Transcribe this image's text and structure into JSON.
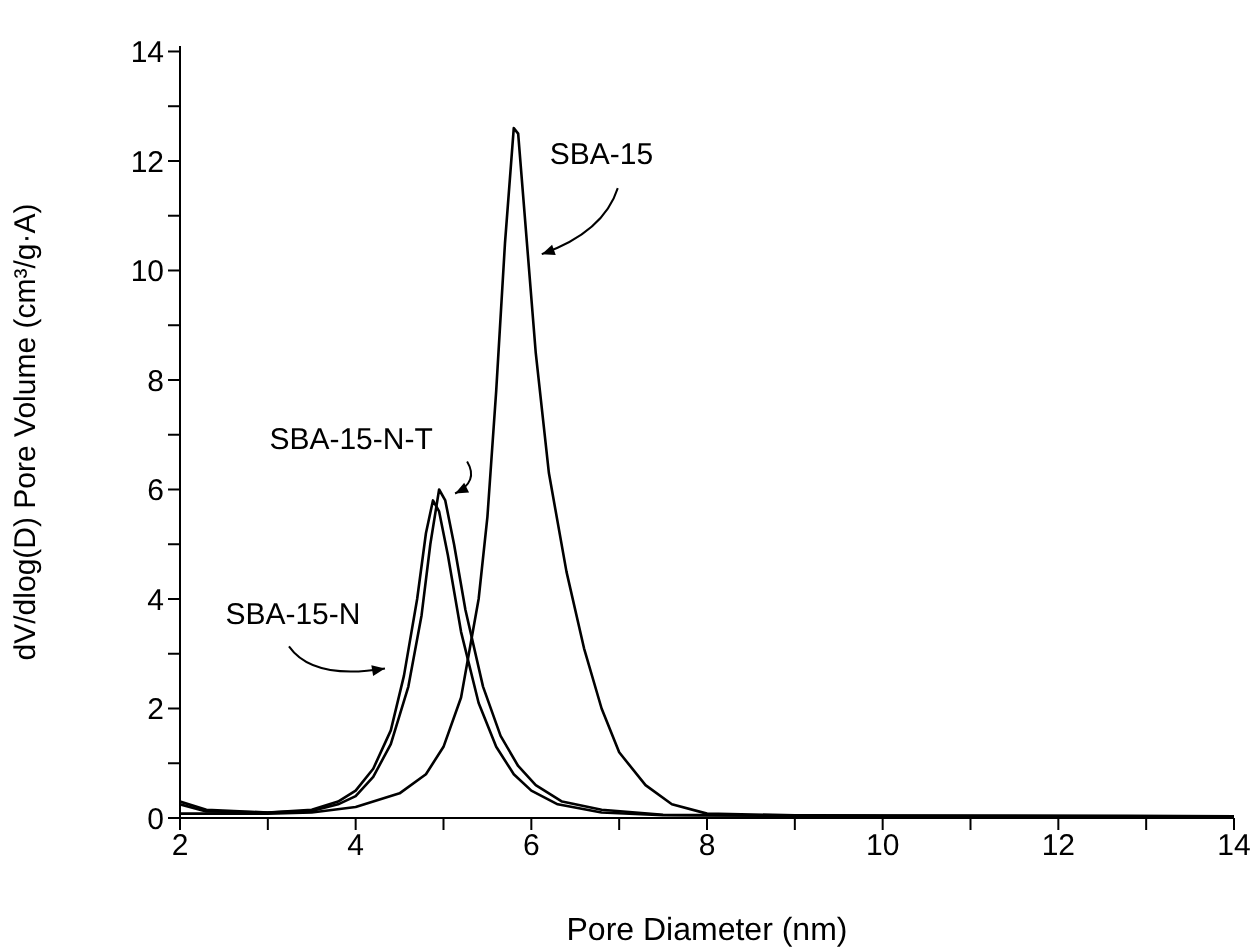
{
  "chart_data": {
    "type": "line",
    "xlabel": "Pore Diameter (nm)",
    "ylabel": "dV/dlog(D) Pore Volume (cm³/g·A)",
    "xlim": [
      2,
      14
    ],
    "ylim": [
      0,
      14.1
    ],
    "xticks": [
      2,
      {
        "value": 3,
        "label": null
      },
      4,
      {
        "value": 5,
        "label": null
      },
      6,
      {
        "value": 7,
        "label": null
      },
      8,
      {
        "value": 9,
        "label": null
      },
      10,
      {
        "value": 11,
        "label": null
      },
      12,
      {
        "value": 13,
        "label": null
      },
      14
    ],
    "yticks": [
      0,
      {
        "value": 1,
        "label": null
      },
      2,
      {
        "value": 3,
        "label": null
      },
      4,
      {
        "value": 5,
        "label": null
      },
      6,
      {
        "value": 7,
        "label": null
      },
      8,
      {
        "value": 9,
        "label": null
      },
      10,
      {
        "value": 11,
        "label": null
      },
      12,
      {
        "value": 13,
        "label": null
      },
      14
    ],
    "grid": false,
    "legend": false,
    "marker": "none",
    "line_style": "solid",
    "series": [
      {
        "name": "SBA-15",
        "color": "#000000",
        "x": [
          2.0,
          3.0,
          3.5,
          4.0,
          4.5,
          4.8,
          5.0,
          5.2,
          5.4,
          5.5,
          5.6,
          5.7,
          5.8,
          5.85,
          5.95,
          6.05,
          6.2,
          6.4,
          6.6,
          6.8,
          7.0,
          7.3,
          7.6,
          8.0,
          9.0,
          12.8,
          14.0
        ],
        "values": [
          0.08,
          0.08,
          0.1,
          0.2,
          0.45,
          0.8,
          1.3,
          2.2,
          4.0,
          5.5,
          7.8,
          10.5,
          12.6,
          12.5,
          10.5,
          8.5,
          6.3,
          4.5,
          3.1,
          2.0,
          1.2,
          0.6,
          0.25,
          0.08,
          0.05,
          0.04,
          0.03
        ]
      },
      {
        "name": "SBA-15-N-T",
        "color": "#000000",
        "x": [
          2.0,
          2.3,
          3.0,
          3.5,
          3.8,
          4.0,
          4.2,
          4.4,
          4.6,
          4.75,
          4.85,
          4.95,
          5.02,
          5.12,
          5.25,
          5.45,
          5.65,
          5.85,
          6.05,
          6.35,
          6.8,
          7.5,
          10.0,
          12.8
        ],
        "values": [
          0.25,
          0.12,
          0.1,
          0.13,
          0.25,
          0.4,
          0.75,
          1.35,
          2.4,
          3.7,
          5.0,
          6.0,
          5.8,
          5.0,
          3.8,
          2.4,
          1.5,
          0.95,
          0.6,
          0.3,
          0.15,
          0.06,
          0.03,
          0.02
        ]
      },
      {
        "name": "SBA-15-N",
        "color": "#000000",
        "x": [
          2.0,
          2.3,
          3.0,
          3.5,
          3.8,
          4.0,
          4.2,
          4.4,
          4.55,
          4.7,
          4.8,
          4.88,
          4.95,
          5.05,
          5.2,
          5.4,
          5.6,
          5.8,
          6.0,
          6.3,
          6.8,
          7.5,
          10.0,
          12.8
        ],
        "values": [
          0.3,
          0.15,
          0.1,
          0.15,
          0.3,
          0.5,
          0.9,
          1.6,
          2.6,
          4.0,
          5.2,
          5.8,
          5.6,
          4.8,
          3.4,
          2.1,
          1.3,
          0.8,
          0.5,
          0.25,
          0.1,
          0.05,
          0.03,
          0.02
        ]
      }
    ]
  }
}
